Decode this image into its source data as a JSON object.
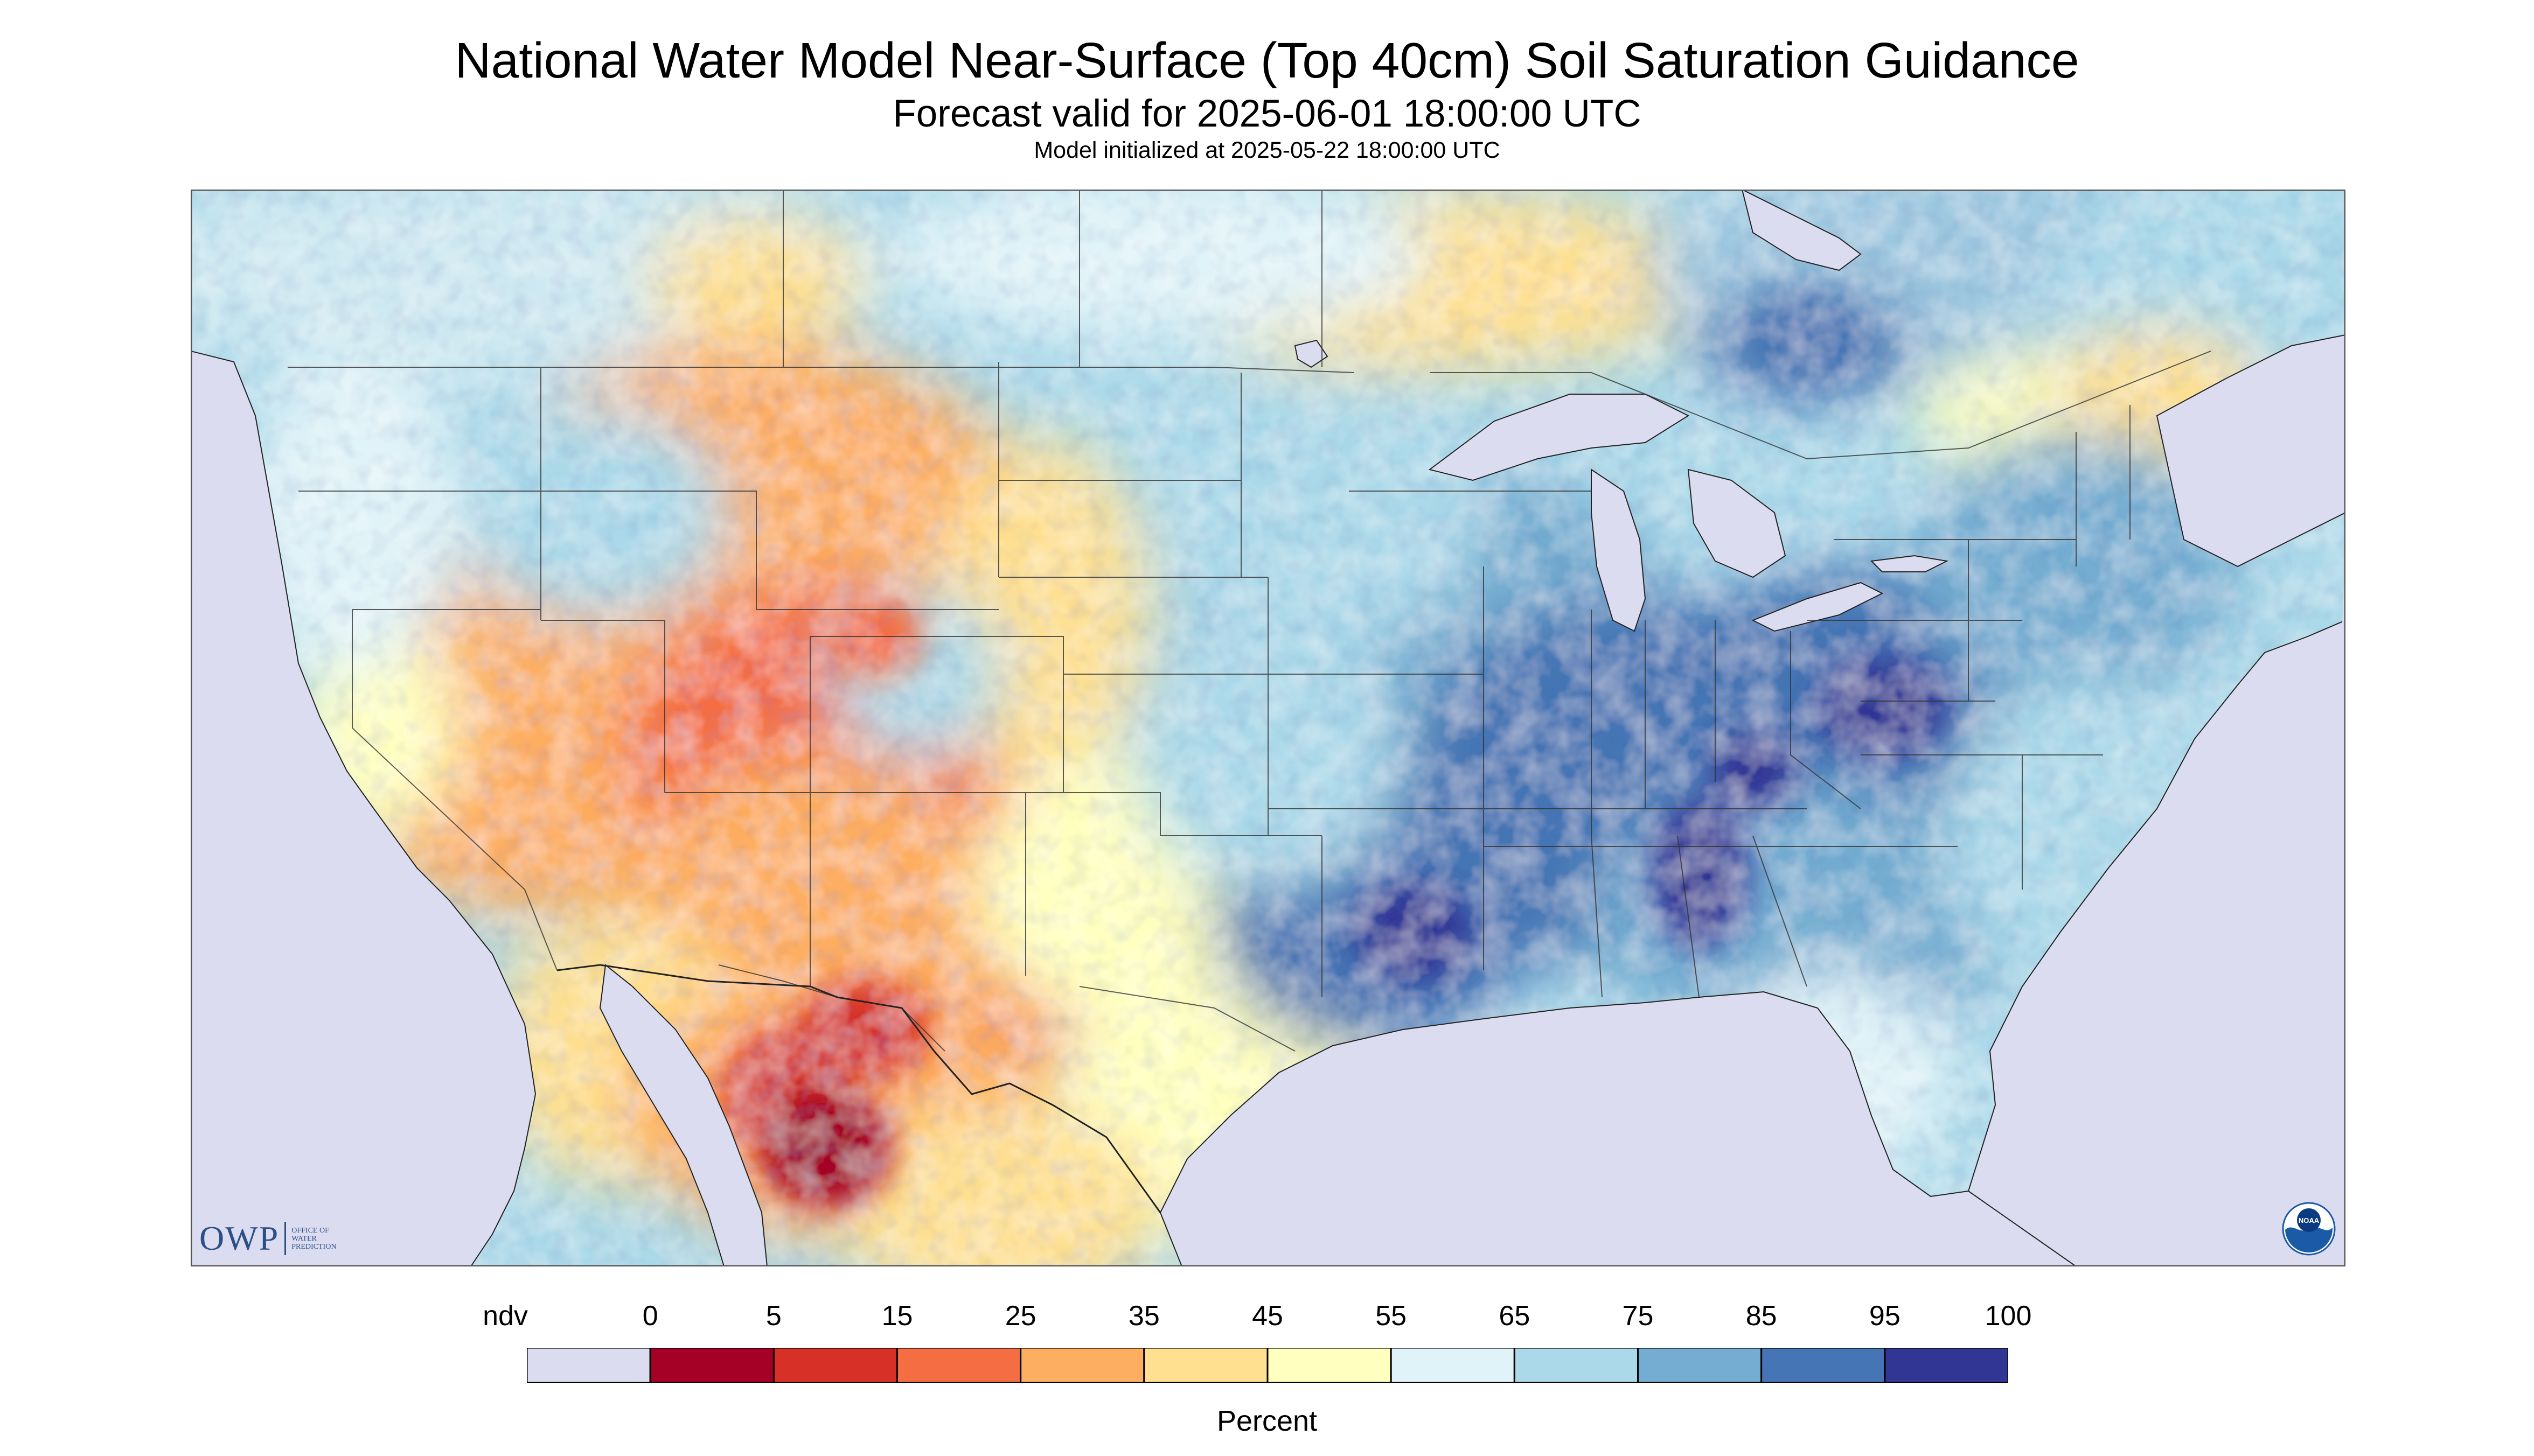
{
  "title": "National Water Model Near-Surface (Top 40cm) Soil Saturation Guidance",
  "subtitle": "Forecast valid for 2025-06-01 18:00:00 UTC",
  "init_line": "Model initialized at 2025-05-22 18:00:00 UTC",
  "logos": {
    "owp_mark": "OWP",
    "owp_lines": [
      "OFFICE OF",
      "WATER",
      "PREDICTION"
    ],
    "noaa_mark": "NOAA"
  },
  "legend": {
    "unit": "Percent",
    "tick_labels": [
      "ndv",
      "0",
      "5",
      "15",
      "25",
      "35",
      "45",
      "55",
      "65",
      "75",
      "85",
      "95",
      "100"
    ],
    "bins": [
      {
        "label": "ndv",
        "color": "#dcdcf0"
      },
      {
        "range": "0-5",
        "color": "#a50026"
      },
      {
        "range": "5-15",
        "color": "#d73027"
      },
      {
        "range": "15-25",
        "color": "#f46d43"
      },
      {
        "range": "25-35",
        "color": "#fdae61"
      },
      {
        "range": "35-45",
        "color": "#fee090"
      },
      {
        "range": "45-55",
        "color": "#ffffbf"
      },
      {
        "range": "55-65",
        "color": "#e0f3f8"
      },
      {
        "range": "65-75",
        "color": "#abd9e9"
      },
      {
        "range": "75-85",
        "color": "#74add1"
      },
      {
        "range": "85-95",
        "color": "#4575b4"
      },
      {
        "range": "95-100",
        "color": "#313695"
      }
    ]
  },
  "map_colors": {
    "background_ndv": "#dcdcf0",
    "boundaries": "#333333",
    "water": "#dcdcf0"
  }
}
